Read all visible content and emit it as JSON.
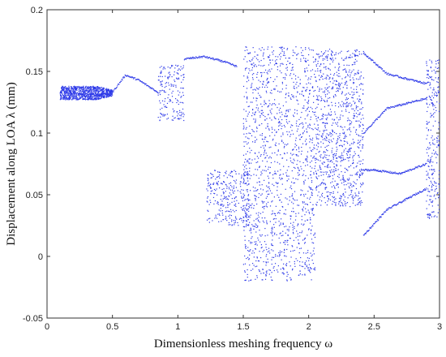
{
  "chart_data": {
    "type": "scatter",
    "title": "",
    "xlabel": "Dimensionless meshing frequency ω",
    "ylabel": "Displacement along LOA λ (mm)",
    "xlim": [
      0,
      3
    ],
    "ylim": [
      -0.05,
      0.2
    ],
    "x_ticks": [
      0,
      0.5,
      1,
      1.5,
      2,
      2.5,
      3
    ],
    "x_tick_labels": [
      "0",
      "0.5",
      "1",
      "1.5",
      "2",
      "2.5",
      "3"
    ],
    "y_ticks": [
      -0.05,
      0,
      0.05,
      0.1,
      0.15,
      0.2
    ],
    "y_tick_labels": [
      "-0.05",
      "0",
      "0.05",
      "0.1",
      "0.15",
      "0.2"
    ],
    "grid": false,
    "marker_color": "#2f3be8",
    "regions": [
      {
        "x": [
          0.1,
          0.5
        ],
        "band": [
          0.127,
          0.138
        ],
        "kind": "band",
        "note": "period-n band"
      },
      {
        "x": [
          0.5,
          0.85
        ],
        "curve": [
          [
            0.5,
            0.133
          ],
          [
            0.6,
            0.147
          ],
          [
            0.7,
            0.143
          ],
          [
            0.85,
            0.133
          ]
        ],
        "kind": "curve"
      },
      {
        "x": [
          0.85,
          1.05
        ],
        "band": [
          0.11,
          0.155
        ],
        "kind": "cloud"
      },
      {
        "x": [
          1.05,
          1.45
        ],
        "curve": [
          [
            1.05,
            0.16
          ],
          [
            1.2,
            0.162
          ],
          [
            1.35,
            0.158
          ],
          [
            1.45,
            0.154
          ]
        ],
        "kind": "curve"
      },
      {
        "x": [
          1.22,
          1.55
        ],
        "band": [
          0.025,
          0.07
        ],
        "kind": "cloud"
      },
      {
        "x": [
          1.5,
          2.05
        ],
        "band": [
          -0.02,
          0.17
        ],
        "kind": "chaos"
      },
      {
        "x": [
          2.05,
          2.42
        ],
        "band": [
          0.04,
          0.168
        ],
        "kind": "chaos"
      },
      {
        "x": [
          2.42,
          2.9
        ],
        "curve": [
          [
            2.42,
            0.165
          ],
          [
            2.6,
            0.148
          ],
          [
            2.9,
            0.14
          ]
        ],
        "kind": "curve"
      },
      {
        "x": [
          2.42,
          2.9
        ],
        "curve": [
          [
            2.42,
            0.1
          ],
          [
            2.6,
            0.12
          ],
          [
            2.9,
            0.128
          ]
        ],
        "kind": "curve"
      },
      {
        "x": [
          2.42,
          2.9
        ],
        "curve": [
          [
            2.5,
            0.07
          ],
          [
            2.7,
            0.067
          ],
          [
            2.9,
            0.075
          ]
        ],
        "kind": "curve"
      },
      {
        "x": [
          2.42,
          2.9
        ],
        "curve": [
          [
            2.42,
            0.017
          ],
          [
            2.6,
            0.038
          ],
          [
            2.9,
            0.055
          ]
        ],
        "kind": "curve"
      },
      {
        "x": [
          2.9,
          3.0
        ],
        "band": [
          0.03,
          0.16
        ],
        "kind": "chaos"
      }
    ]
  }
}
